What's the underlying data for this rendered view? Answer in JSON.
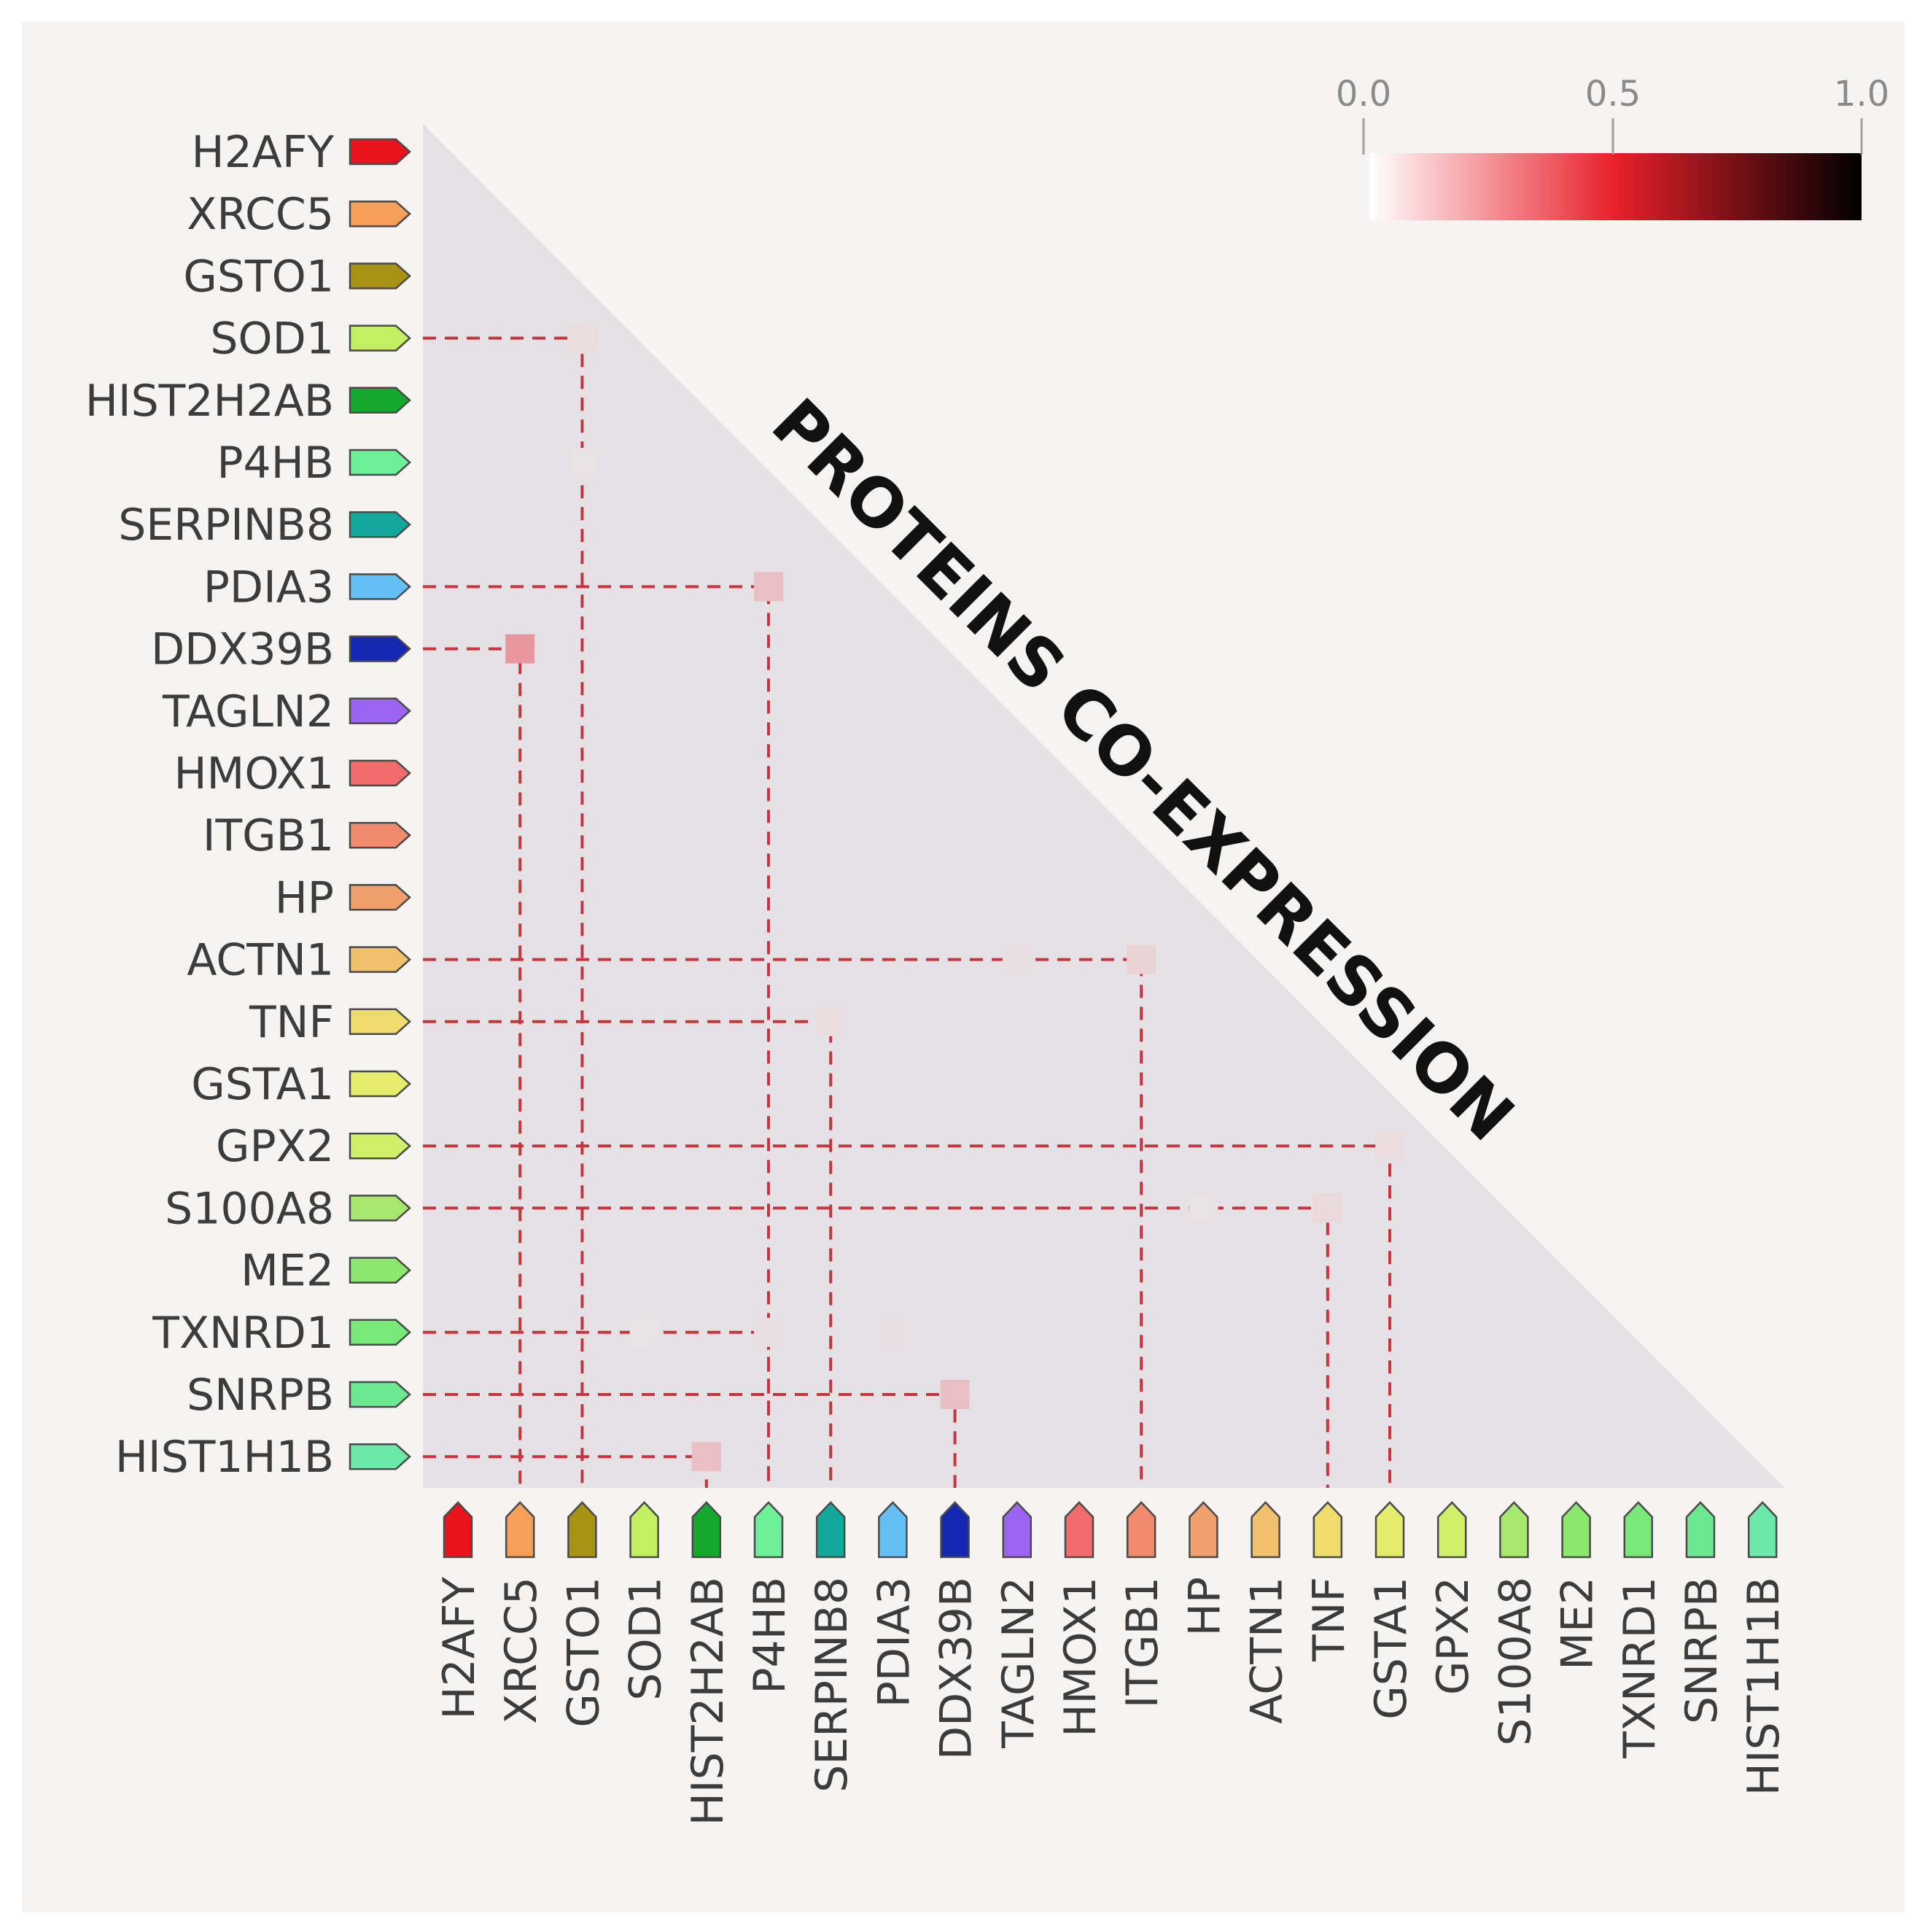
{
  "chart_data": {
    "type": "heatmap",
    "title": "PROTEINS CO-EXPRESSION",
    "proteins": [
      {
        "name": "H2AFY",
        "color": "#e8141c"
      },
      {
        "name": "XRCC5",
        "color": "#f4a058"
      },
      {
        "name": "GSTO1",
        "color": "#a89214"
      },
      {
        "name": "SOD1",
        "color": "#c2f060"
      },
      {
        "name": "HIST2H2AB",
        "color": "#14a82c"
      },
      {
        "name": "P4HB",
        "color": "#6cf098"
      },
      {
        "name": "SERPINB8",
        "color": "#14a89c"
      },
      {
        "name": "PDIA3",
        "color": "#64c0f4"
      },
      {
        "name": "DDX39B",
        "color": "#1428b4"
      },
      {
        "name": "TAGLN2",
        "color": "#9c64f0"
      },
      {
        "name": "HMOX1",
        "color": "#f06c6c"
      },
      {
        "name": "ITGB1",
        "color": "#f08c6c"
      },
      {
        "name": "HP",
        "color": "#f0a06c"
      },
      {
        "name": "ACTN1",
        "color": "#f0c06c"
      },
      {
        "name": "TNF",
        "color": "#f0dc6c"
      },
      {
        "name": "GSTA1",
        "color": "#e4ec6c"
      },
      {
        "name": "GPX2",
        "color": "#d0f06c"
      },
      {
        "name": "S100A8",
        "color": "#a8e86c"
      },
      {
        "name": "ME2",
        "color": "#8ce86c"
      },
      {
        "name": "TXNRD1",
        "color": "#78e878"
      },
      {
        "name": "SNRPB",
        "color": "#6ce890"
      },
      {
        "name": "HIST1H1B",
        "color": "#6ce8a8"
      }
    ],
    "colorbar": {
      "ticks": [
        "0.0",
        "0.5",
        "1.0"
      ],
      "range": [
        0,
        1
      ],
      "colors": [
        "#ffffff",
        "#e8202a",
        "#000000"
      ]
    },
    "cells": [
      {
        "row": "SOD1",
        "col": "GSTO1",
        "value": 0.12,
        "linked": true
      },
      {
        "row": "P4HB",
        "col": "GSTO1",
        "value": 0.08,
        "linked": false
      },
      {
        "row": "PDIA3",
        "col": "P4HB",
        "value": 0.3,
        "linked": true
      },
      {
        "row": "DDX39B",
        "col": "XRCC5",
        "value": 0.45,
        "linked": true
      },
      {
        "row": "ACTN1",
        "col": "TAGLN2",
        "value": 0.1,
        "linked": false
      },
      {
        "row": "ACTN1",
        "col": "ITGB1",
        "value": 0.2,
        "linked": true
      },
      {
        "row": "TNF",
        "col": "SERPINB8",
        "value": 0.12,
        "linked": true
      },
      {
        "row": "GPX2",
        "col": "GSTA1",
        "value": 0.12,
        "linked": true
      },
      {
        "row": "S100A8",
        "col": "HP",
        "value": 0.08,
        "linked": false
      },
      {
        "row": "S100A8",
        "col": "TNF",
        "value": 0.15,
        "linked": true
      },
      {
        "row": "TXNRD1",
        "col": "SOD1",
        "value": 0.08,
        "linked": false
      },
      {
        "row": "TXNRD1",
        "col": "P4HB",
        "value": 0.1,
        "linked": true
      },
      {
        "row": "TXNRD1",
        "col": "PDIA3",
        "value": 0.1,
        "linked": false
      },
      {
        "row": "SNRPB",
        "col": "DDX39B",
        "value": 0.3,
        "linked": true
      },
      {
        "row": "HIST1H1B",
        "col": "HIST2H2AB",
        "value": 0.3,
        "linked": true
      }
    ]
  }
}
